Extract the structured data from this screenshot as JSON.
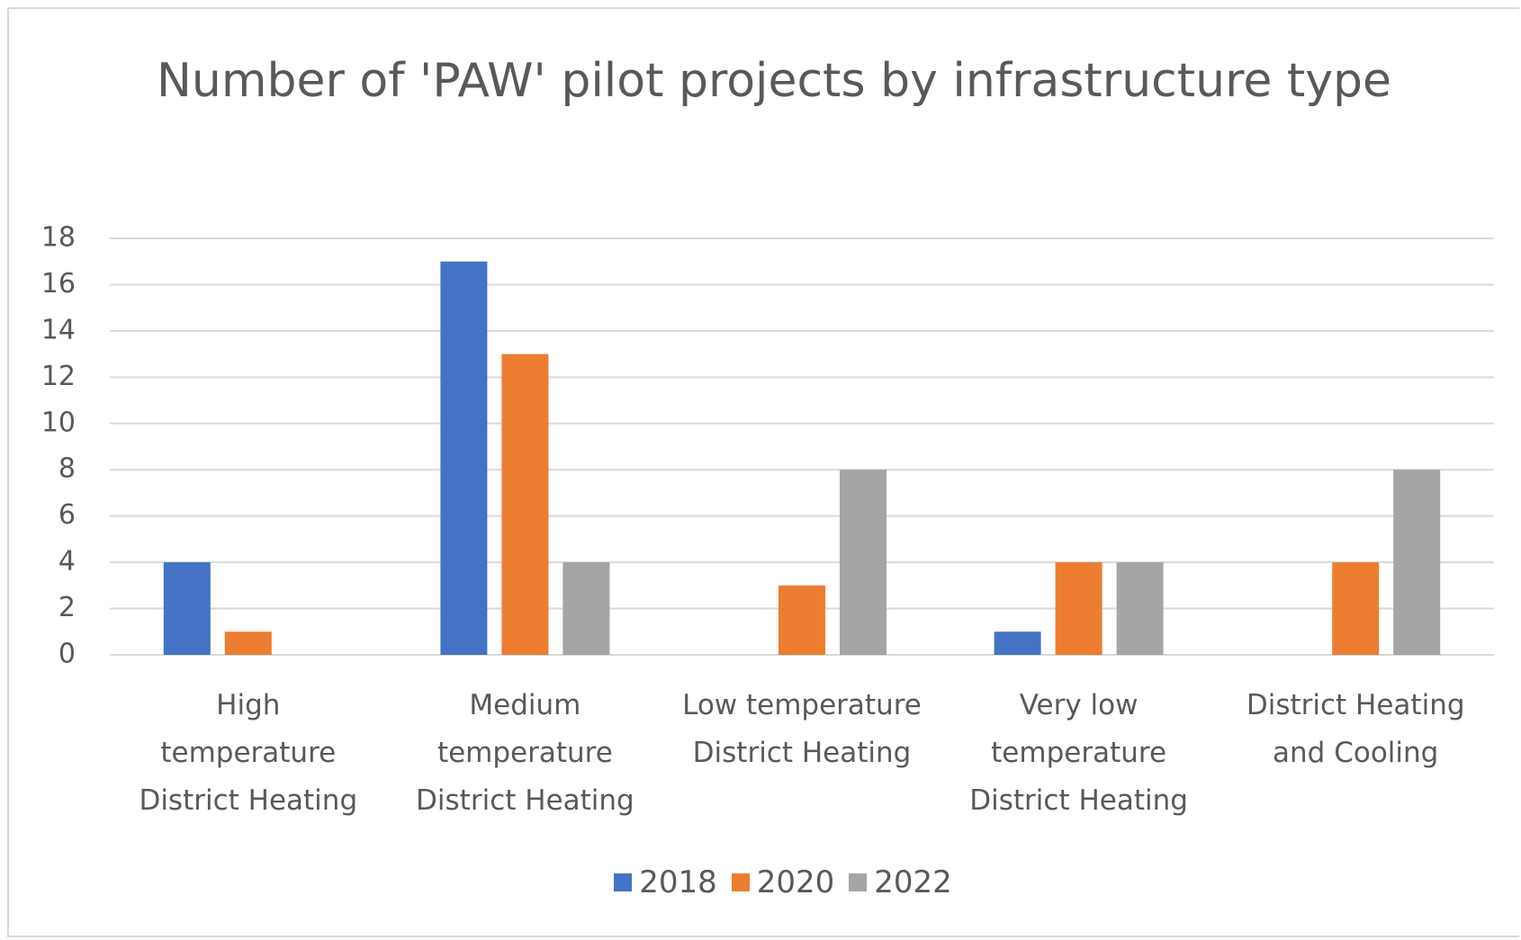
{
  "chart_data": {
    "type": "bar",
    "title": "Number of 'PAW' pilot projects by infrastructure type",
    "categories": [
      "High\ntemperature\nDistrict Heating",
      "Medium\ntemperature\nDistrict Heating",
      "Low temperature\nDistrict Heating",
      "Very low\ntemperature\nDistrict Heating",
      "District Heating\nand Cooling"
    ],
    "series": [
      {
        "name": "2018",
        "color": "#4472c4",
        "values": [
          4,
          17,
          0,
          1,
          0
        ]
      },
      {
        "name": "2020",
        "color": "#ed7d31",
        "values": [
          1,
          13,
          3,
          4,
          4
        ]
      },
      {
        "name": "2022",
        "color": "#a5a5a5",
        "values": [
          0,
          4,
          8,
          4,
          8
        ]
      }
    ],
    "ylim": [
      0,
      18
    ],
    "yticks": [
      0,
      2,
      4,
      6,
      8,
      10,
      12,
      14,
      16,
      18
    ],
    "grid": true,
    "legend": "bottom"
  }
}
